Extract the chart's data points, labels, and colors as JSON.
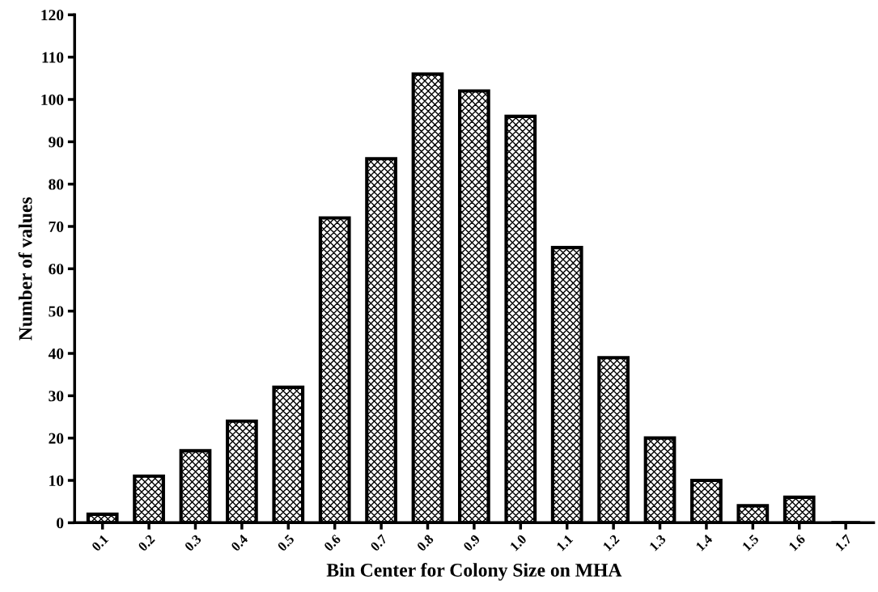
{
  "chart_data": {
    "type": "bar",
    "xlabel": "Bin Center for Colony Size on MHA",
    "ylabel": "Number of values",
    "categories": [
      "0.1",
      "0.2",
      "0.3",
      "0.4",
      "0.5",
      "0.6",
      "0.7",
      "0.8",
      "0.9",
      "1.0",
      "1.1",
      "1.2",
      "1.3",
      "1.4",
      "1.5",
      "1.6",
      "1.7"
    ],
    "values": [
      2,
      11,
      17,
      24,
      32,
      72,
      86,
      106,
      102,
      96,
      65,
      39,
      20,
      10,
      4,
      6,
      0
    ],
    "color": "#000000",
    "ylim": [
      0,
      120
    ],
    "yticks": [
      0,
      10,
      20,
      30,
      40,
      50,
      60,
      70,
      80,
      90,
      100,
      110,
      120
    ],
    "grid": false
  }
}
